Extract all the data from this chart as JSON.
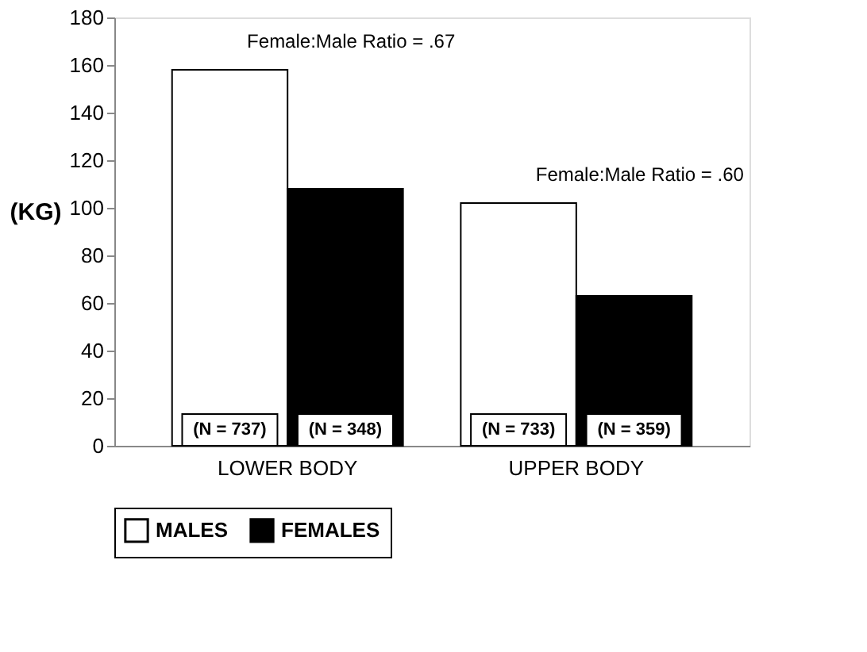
{
  "chart_data": {
    "type": "bar",
    "ylabel": "(KG)",
    "categories": [
      "LOWER BODY",
      "UPPER BODY"
    ],
    "series": [
      {
        "name": "MALES",
        "color": "#ffffff",
        "values": [
          158,
          102
        ]
      },
      {
        "name": "FEMALES",
        "color": "#000000",
        "values": [
          108,
          63
        ]
      }
    ],
    "ylim": [
      0,
      180
    ],
    "yticks": [
      0,
      20,
      40,
      60,
      80,
      100,
      120,
      140,
      160,
      180
    ],
    "grid": false,
    "legend": "bottom",
    "annotations": [
      "Female:Male Ratio = .67",
      "Female:Male Ratio = .60",
      "(N = 737)",
      "(N = 348)",
      "(N = 733)",
      "(N = 359)"
    ]
  }
}
